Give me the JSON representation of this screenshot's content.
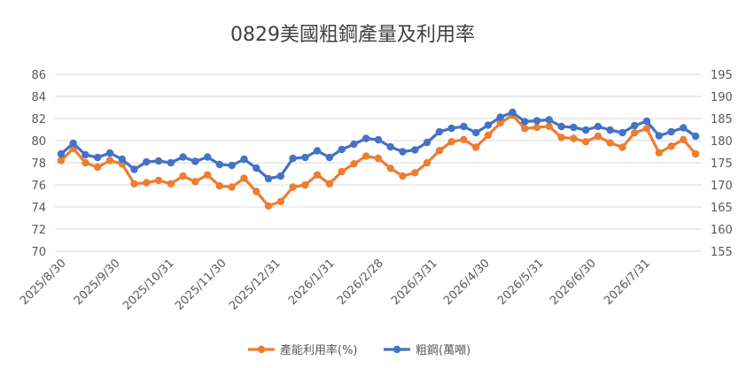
{
  "chart_data": {
    "type": "line",
    "title": "0829美國粗鋼產量及利用率",
    "x": [
      "2025/8/30",
      "2025/9/6",
      "2025/9/13",
      "2025/9/20",
      "2025/9/27",
      "2025/10/4",
      "2025/10/11",
      "2025/10/18",
      "2025/10/25",
      "2025/11/1",
      "2025/11/8",
      "2025/11/15",
      "2025/11/22",
      "2025/11/29",
      "2025/12/6",
      "2025/12/13",
      "2025/12/20",
      "2025/12/27",
      "2026/1/3",
      "2026/1/10",
      "2026/1/17",
      "2026/1/24",
      "2026/1/31",
      "2026/2/7",
      "2026/2/14",
      "2026/2/21",
      "2026/2/28",
      "2026/3/7",
      "2026/3/14",
      "2026/3/21",
      "2026/3/28",
      "2026/4/4",
      "2026/4/11",
      "2026/4/18",
      "2026/4/25",
      "2026/5/2",
      "2026/5/9",
      "2026/5/16",
      "2026/5/23",
      "2026/5/30",
      "2026/6/6",
      "2026/6/13",
      "2026/6/20",
      "2026/6/27",
      "2026/7/4",
      "2026/7/11",
      "2026/7/18",
      "2026/7/25",
      "2026/8/1",
      "2026/8/8",
      "2026/8/15",
      "2026/8/22",
      "2026/8/29"
    ],
    "xtick_labels": [
      "2025/8/30",
      "2025/9/30",
      "2025/10/31",
      "2025/11/30",
      "2025/12/31",
      "2026/1/31",
      "2026/2/28",
      "2026/3/31",
      "2026/4/30",
      "2026/5/31",
      "2026/6/30",
      "2026/7/31"
    ],
    "series": [
      {
        "name": "產能利用率(%)",
        "axis": "left",
        "color": "#ED7D31",
        "values": [
          78.2,
          79.3,
          78.0,
          77.6,
          78.2,
          77.9,
          76.1,
          76.2,
          76.4,
          76.1,
          76.8,
          76.3,
          76.9,
          75.9,
          75.8,
          76.6,
          75.4,
          74.1,
          74.5,
          75.8,
          76.0,
          76.9,
          76.1,
          77.2,
          77.9,
          78.6,
          78.4,
          77.5,
          76.8,
          77.1,
          78.0,
          79.1,
          79.9,
          80.1,
          79.4,
          80.5,
          81.6,
          82.3,
          81.1,
          81.2,
          81.3,
          80.3,
          80.2,
          79.9,
          80.4,
          79.8,
          79.4,
          80.7,
          81.1,
          78.9,
          79.5,
          80.1,
          78.8
        ]
      },
      {
        "name": "粗鋼(萬噸)",
        "axis": "right",
        "color": "#4472C4",
        "values": [
          177.0,
          179.4,
          176.8,
          176.2,
          177.2,
          175.8,
          173.5,
          175.2,
          175.4,
          175.0,
          176.3,
          175.3,
          176.3,
          174.6,
          174.4,
          175.8,
          173.8,
          171.4,
          172.0,
          176.0,
          176.2,
          177.7,
          176.2,
          178.0,
          179.2,
          180.5,
          180.2,
          178.6,
          177.5,
          177.9,
          179.6,
          182.0,
          182.8,
          183.2,
          181.8,
          183.5,
          185.3,
          186.4,
          184.3,
          184.5,
          184.7,
          183.2,
          183.0,
          182.4,
          183.2,
          182.4,
          181.8,
          183.4,
          184.4,
          181.1,
          182.0,
          182.9,
          181.0
        ]
      }
    ],
    "ylim_left": [
      70,
      86
    ],
    "yticks_left": [
      70,
      72,
      74,
      76,
      78,
      80,
      82,
      84,
      86
    ],
    "ylim_right": [
      155,
      195
    ],
    "yticks_right": [
      155,
      160,
      165,
      170,
      175,
      180,
      185,
      190,
      195
    ],
    "grid": true,
    "legend_position": "bottom"
  }
}
